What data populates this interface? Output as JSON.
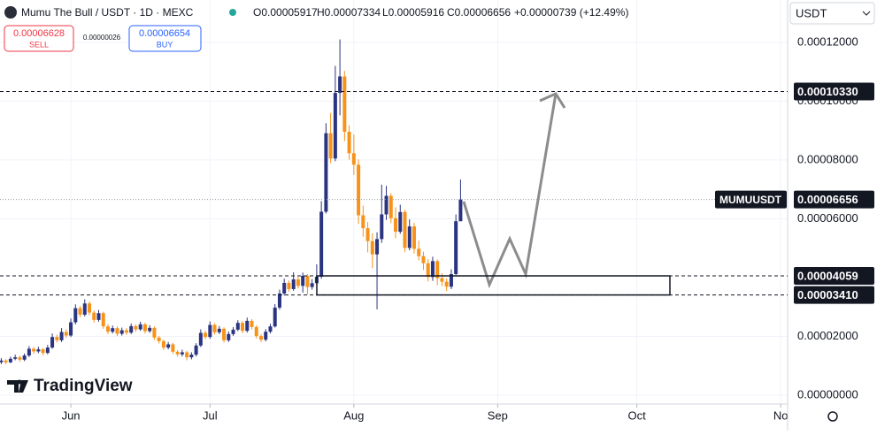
{
  "header": {
    "symbol": "Mumu The Bull / USDT · 1D · MEXC",
    "ohlc": [
      "O0.00005917",
      "H0.00007334",
      "L0.00005916",
      "C0.00006656",
      "+0.00000739 (+12.49%)"
    ]
  },
  "trade": {
    "sell_price": "0.00006628",
    "sell": "SELL",
    "spread": "0.00000026",
    "buy_price": "0.00006654",
    "buy": "BUY"
  },
  "currency": "USDT",
  "brand": "TradingView",
  "chart_data": {
    "type": "candlestick",
    "x": [
      0,
      1,
      2,
      3,
      4,
      5,
      6,
      7,
      8,
      9,
      10,
      11,
      12,
      13,
      14,
      15,
      16,
      17,
      18,
      19,
      20,
      21,
      22,
      23,
      24,
      25,
      26,
      27,
      28,
      29,
      30,
      31,
      32,
      33,
      34,
      35,
      36,
      37,
      38,
      39,
      40,
      41,
      42,
      43,
      44,
      45,
      46,
      47,
      48,
      49,
      50,
      51,
      52,
      53,
      54,
      55,
      56,
      57,
      58,
      59,
      60,
      61,
      62,
      63,
      64,
      65,
      66,
      67,
      68,
      69,
      70,
      71,
      72,
      73,
      74,
      75,
      76,
      77,
      78,
      79,
      80,
      81,
      82,
      83,
      84,
      85,
      86,
      87,
      88,
      89,
      90,
      91,
      92,
      93,
      94,
      95,
      96,
      97,
      98,
      99
    ],
    "open": [
      1.12e-05,
      1.18e-05,
      1.12e-05,
      1.24e-05,
      1.29e-05,
      1.21e-05,
      1.35e-05,
      1.58e-05,
      1.49e-05,
      1.56e-05,
      1.44e-05,
      1.62e-05,
      1.98e-05,
      1.87e-05,
      2.15e-05,
      2.03e-05,
      2.48e-05,
      2.96e-05,
      2.74e-05,
      3.12e-05,
      2.81e-05,
      2.56e-05,
      2.79e-05,
      2.34e-05,
      2.16e-05,
      2.28e-05,
      2.09e-05,
      2.21e-05,
      2.13e-05,
      2.35e-05,
      2.24e-05,
      2.41e-05,
      2.18e-05,
      2.29e-05,
      1.96e-05,
      1.84e-05,
      1.62e-05,
      1.73e-05,
      1.48e-05,
      1.39e-05,
      1.46e-05,
      1.29e-05,
      1.38e-05,
      1.69e-05,
      2.12e-05,
      1.98e-05,
      2.39e-05,
      2.14e-05,
      2.26e-05,
      1.87e-05,
      2.08e-05,
      2.23e-05,
      2.46e-05,
      2.19e-05,
      2.53e-05,
      2.32e-05,
      2.01e-05,
      1.89e-05,
      2.16e-05,
      2.34e-05,
      2.98e-05,
      3.46e-05,
      3.82e-05,
      3.61e-05,
      3.94e-05,
      3.72e-05,
      4.06e-05,
      3.68e-05,
      3.81e-05,
      4.03e-05,
      6.24e-05,
      8.91e-05,
      8.05e-05,
      0.0001028,
      0.0001084,
      8.96e-05,
      8.23e-05,
      7.84e-05,
      6.12e-05,
      5.68e-05,
      5.24e-05,
      4.79e-05,
      5.31e-05,
      6.15e-05,
      6.78e-05,
      6.02e-05,
      5.56e-05,
      6.23e-05,
      5.01e-05,
      5.74e-05,
      4.98e-05,
      4.73e-05,
      4.49e-05,
      4.02e-05,
      4.56e-05,
      3.98e-05,
      3.86e-05,
      3.69e-05,
      4.12e-05,
      5.917e-05
    ],
    "high": [
      1.26e-05,
      1.23e-05,
      1.31e-05,
      1.38e-05,
      1.35e-05,
      1.42e-05,
      1.67e-05,
      1.64e-05,
      1.65e-05,
      1.61e-05,
      1.71e-05,
      2.1e-05,
      2.06e-05,
      2.28e-05,
      2.24e-05,
      2.61e-05,
      3.09e-05,
      3.04e-05,
      3.26e-05,
      3.19e-05,
      2.88e-05,
      2.9e-05,
      2.84e-05,
      2.42e-05,
      2.37e-05,
      2.34e-05,
      2.3e-05,
      2.28e-05,
      2.44e-05,
      2.41e-05,
      2.5e-05,
      2.46e-05,
      2.38e-05,
      2.34e-05,
      2.02e-05,
      1.89e-05,
      1.81e-05,
      1.78e-05,
      1.54e-05,
      1.55e-05,
      1.51e-05,
      1.46e-05,
      1.77e-05,
      2.24e-05,
      2.19e-05,
      2.51e-05,
      2.45e-05,
      2.35e-05,
      2.31e-05,
      2.17e-05,
      2.32e-05,
      2.55e-05,
      2.52e-05,
      2.64e-05,
      2.59e-05,
      2.38e-05,
      2.08e-05,
      2.25e-05,
      2.43e-05,
      3.1e-05,
      3.59e-05,
      3.96e-05,
      3.9e-05,
      4.18e-05,
      4.03e-05,
      4.17e-05,
      4.12e-05,
      3.95e-05,
      4.45e-05,
      6.6e-05,
      9.25e-05,
      9.6e-05,
      0.000112,
      0.000121,
      0.0001103,
      9.18e-05,
      8.86e-05,
      8.02e-05,
      6.45e-05,
      5.89e-05,
      5.51e-05,
      5.54e-05,
      7.16e-05,
      7.12e-05,
      6.87e-05,
      6.39e-05,
      6.48e-05,
      6.31e-05,
      5.98e-05,
      5.86e-05,
      5.26e-05,
      4.88e-05,
      4.63e-05,
      4.71e-05,
      4.62e-05,
      4.15e-05,
      3.97e-05,
      4.28e-05,
      6.15e-05,
      7.334e-05
    ],
    "low": [
      1.06e-05,
      1.05e-05,
      1.09e-05,
      1.19e-05,
      1.14e-05,
      1.16e-05,
      1.3e-05,
      1.41e-05,
      1.43e-05,
      1.36e-05,
      1.39e-05,
      1.58e-05,
      1.79e-05,
      1.81e-05,
      1.95e-05,
      1.98e-05,
      2.41e-05,
      2.65e-05,
      2.68e-05,
      2.72e-05,
      2.47e-05,
      2.5e-05,
      2.26e-05,
      2.08e-05,
      2.1e-05,
      2.01e-05,
      2.03e-05,
      2.05e-05,
      2.08e-05,
      2.16e-05,
      2.19e-05,
      2.1e-05,
      2.12e-05,
      1.88e-05,
      1.76e-05,
      1.54e-05,
      1.56e-05,
      1.4e-05,
      1.31e-05,
      1.32e-05,
      1.19e-05,
      1.22e-05,
      1.32e-05,
      1.64e-05,
      1.9e-05,
      1.92e-05,
      2.06e-05,
      2.08e-05,
      1.79e-05,
      1.81e-05,
      2.02e-05,
      2.18e-05,
      2.11e-05,
      2.13e-05,
      2.24e-05,
      1.93e-05,
      1.81e-05,
      1.83e-05,
      2.1e-05,
      2.3e-05,
      2.91e-05,
      3.39e-05,
      3.52e-05,
      3.55e-05,
      3.63e-05,
      3.49e-05,
      3.42e-05,
      3.59e-05,
      3.74e-05,
      3.96e-05,
      6.18e-05,
      7.89e-05,
      7.96e-05,
      9.52e-05,
      8.64e-05,
      8.01e-05,
      7.49e-05,
      5.83e-05,
      5.39e-05,
      4.86e-05,
      4.32e-05,
      2.92e-05,
      5.18e-05,
      5.96e-05,
      5.85e-05,
      5.34e-05,
      5.49e-05,
      4.87e-05,
      4.93e-05,
      4.82e-05,
      4.59e-05,
      4.26e-05,
      3.87e-05,
      3.89e-05,
      3.74e-05,
      3.71e-05,
      3.54e-05,
      3.61e-05,
      4.08e-05,
      5.916e-05
    ],
    "close": [
      1.18e-05,
      1.12e-05,
      1.24e-05,
      1.29e-05,
      1.21e-05,
      1.35e-05,
      1.58e-05,
      1.49e-05,
      1.56e-05,
      1.44e-05,
      1.62e-05,
      1.98e-05,
      1.87e-05,
      2.15e-05,
      2.03e-05,
      2.48e-05,
      2.96e-05,
      2.74e-05,
      3.12e-05,
      2.81e-05,
      2.56e-05,
      2.79e-05,
      2.34e-05,
      2.16e-05,
      2.28e-05,
      2.09e-05,
      2.21e-05,
      2.13e-05,
      2.35e-05,
      2.24e-05,
      2.41e-05,
      2.18e-05,
      2.29e-05,
      1.96e-05,
      1.84e-05,
      1.62e-05,
      1.73e-05,
      1.48e-05,
      1.39e-05,
      1.46e-05,
      1.29e-05,
      1.38e-05,
      1.69e-05,
      2.12e-05,
      1.98e-05,
      2.39e-05,
      2.14e-05,
      2.26e-05,
      1.87e-05,
      2.08e-05,
      2.23e-05,
      2.46e-05,
      2.19e-05,
      2.53e-05,
      2.32e-05,
      2.01e-05,
      1.89e-05,
      2.16e-05,
      2.34e-05,
      2.98e-05,
      3.46e-05,
      3.82e-05,
      3.61e-05,
      3.94e-05,
      3.72e-05,
      4.06e-05,
      3.68e-05,
      3.81e-05,
      4.03e-05,
      6.24e-05,
      8.91e-05,
      8.05e-05,
      0.0001028,
      0.0001084,
      8.96e-05,
      8.23e-05,
      7.84e-05,
      6.12e-05,
      5.68e-05,
      5.24e-05,
      4.79e-05,
      5.31e-05,
      6.15e-05,
      6.78e-05,
      6.02e-05,
      5.56e-05,
      6.23e-05,
      5.01e-05,
      5.74e-05,
      4.98e-05,
      4.73e-05,
      4.49e-05,
      4.02e-05,
      4.56e-05,
      3.98e-05,
      3.86e-05,
      3.69e-05,
      4.12e-05,
      5.917e-05,
      6.656e-05
    ],
    "up_color": "#2a3480",
    "down_color": "#f7931a",
    "xlim": [
      -0.27,
      169.5
    ],
    "ylim": [
      -3e-06,
      0.0001344
    ],
    "xticks": [
      {
        "value": 15,
        "label": "Jun"
      },
      {
        "value": 45,
        "label": "Jul"
      },
      {
        "value": 76,
        "label": "Aug"
      },
      {
        "value": 107,
        "label": "Sep"
      },
      {
        "value": 137,
        "label": "Oct"
      },
      {
        "value": 168,
        "label": "No"
      }
    ],
    "yticks": [
      {
        "value": 0,
        "label": "0.00000000"
      },
      {
        "value": 2e-05,
        "label": "0.00002000"
      },
      {
        "value": 6e-05,
        "label": "0.00006000"
      },
      {
        "value": 8e-05,
        "label": "0.00008000"
      },
      {
        "value": 0.0001,
        "label": "0.00010000"
      },
      {
        "value": 0.00012,
        "label": "0.00012000"
      }
    ],
    "grid": true,
    "levels": [
      {
        "value": 0.0001033,
        "label": "0.00010330"
      },
      {
        "value": 4.059e-05,
        "label": "0.00004059"
      },
      {
        "value": 3.41e-05,
        "label": "0.00003410"
      }
    ],
    "last_price": {
      "symbol": "MUMUUSDT",
      "label": "0.00006656"
    }
  }
}
